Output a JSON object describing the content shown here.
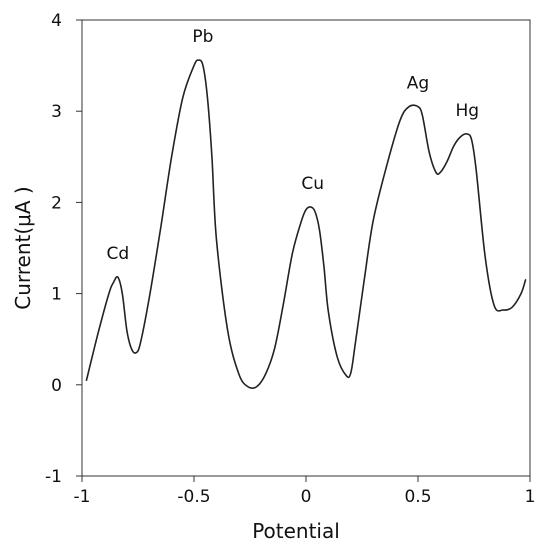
{
  "chart_data": {
    "type": "line",
    "title": "",
    "xlabel": "Potential",
    "ylabel": "Current(μA )",
    "xlim": [
      -1,
      1
    ],
    "ylim": [
      -1,
      4
    ],
    "xticks": [
      -1,
      -0.5,
      0,
      0.5,
      1
    ],
    "yticks": [
      -1,
      0,
      1,
      2,
      3,
      4
    ],
    "xtick_labels": [
      "-1",
      "-0.5",
      "0",
      "0.5",
      "1"
    ],
    "ytick_labels": [
      "-1",
      "0",
      "1",
      "2",
      "3",
      "4"
    ],
    "grid": false,
    "legend": "none",
    "line_color": "#222222",
    "series": [
      {
        "x": [
          -0.98,
          -0.93,
          -0.88,
          -0.86,
          -0.84,
          -0.82,
          -0.8,
          -0.78,
          -0.76,
          -0.74,
          -0.7,
          -0.65,
          -0.6,
          -0.55,
          -0.5,
          -0.48,
          -0.46,
          -0.44,
          -0.42,
          -0.4,
          -0.35,
          -0.3,
          -0.26,
          -0.22,
          -0.18,
          -0.14,
          -0.1,
          -0.06,
          -0.02,
          0.0,
          0.02,
          0.04,
          0.06,
          0.08,
          0.1,
          0.14,
          0.18,
          0.2,
          0.22,
          0.26,
          0.3,
          0.36,
          0.42,
          0.46,
          0.5,
          0.52,
          0.55,
          0.58,
          0.6,
          0.63,
          0.66,
          0.69,
          0.72,
          0.74,
          0.76,
          0.8,
          0.84,
          0.88,
          0.92,
          0.96,
          0.98
        ],
        "y": [
          0.05,
          0.55,
          1.0,
          1.12,
          1.18,
          1.0,
          0.6,
          0.4,
          0.35,
          0.45,
          0.95,
          1.7,
          2.5,
          3.15,
          3.5,
          3.56,
          3.5,
          3.15,
          2.5,
          1.6,
          0.6,
          0.12,
          -0.02,
          -0.02,
          0.12,
          0.4,
          0.9,
          1.45,
          1.8,
          1.92,
          1.95,
          1.9,
          1.7,
          1.3,
          0.8,
          0.3,
          0.1,
          0.13,
          0.45,
          1.15,
          1.8,
          2.4,
          2.9,
          3.05,
          3.05,
          2.95,
          2.55,
          2.33,
          2.33,
          2.45,
          2.62,
          2.72,
          2.75,
          2.68,
          2.35,
          1.4,
          0.87,
          0.82,
          0.85,
          1.0,
          1.15
        ]
      }
    ],
    "annotations": [
      {
        "text": "Cd",
        "x": -0.84,
        "y": 1.18
      },
      {
        "text": "Pb",
        "x": -0.46,
        "y": 3.56
      },
      {
        "text": "Cu",
        "x": 0.03,
        "y": 1.95
      },
      {
        "text": "Ag",
        "x": 0.5,
        "y": 3.05
      },
      {
        "text": "Hg",
        "x": 0.72,
        "y": 2.75
      }
    ]
  }
}
